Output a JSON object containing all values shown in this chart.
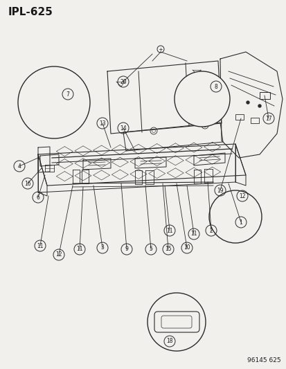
{
  "title": "IPL-625",
  "footer": "96145 625",
  "bg_color": "#f2f0ec",
  "line_color": "#2a2a2a",
  "text_color": "#1a1a1a",
  "title_fontsize": 11,
  "footer_fontsize": 6.5
}
